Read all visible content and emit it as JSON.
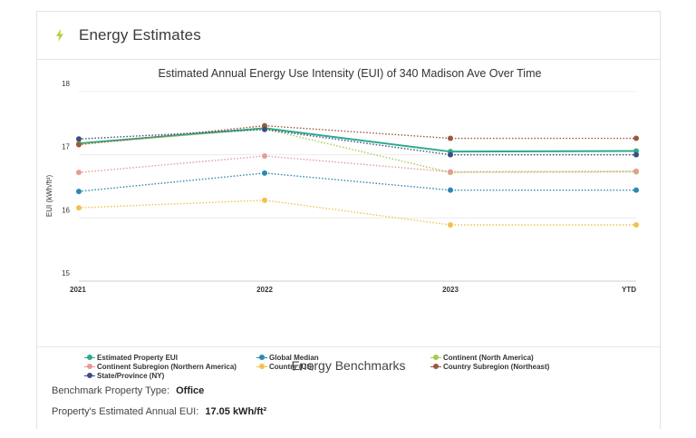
{
  "header": {
    "title": "Energy Estimates",
    "icon": "lightning-bolt-icon",
    "icon_color": "#b6cc3e"
  },
  "chart_data": {
    "type": "line",
    "title": "Estimated Annual Energy Use Intensity (EUI) of 340 Madison Ave Over Time",
    "xlabel": "",
    "ylabel": "EUI (kWh/ft²)",
    "categories": [
      "2021",
      "2022",
      "2023",
      "YTD"
    ],
    "ylim": [
      15,
      18
    ],
    "yticks": [
      "15",
      "16",
      "17",
      "18"
    ],
    "grid": true,
    "legend_position": "bottom",
    "series": [
      {
        "name": "Estimated Property EUI",
        "color": "#2eaa8a",
        "dash": "solid",
        "values": [
          17.18,
          17.42,
          17.05,
          17.06
        ]
      },
      {
        "name": "Global Median",
        "color": "#2b88b5",
        "dash": "dotted",
        "values": [
          16.42,
          16.71,
          16.44,
          16.44
        ]
      },
      {
        "name": "Continent (North America)",
        "color": "#a6cc4a",
        "dash": "dotted",
        "values": [
          17.17,
          17.41,
          16.72,
          16.73
        ]
      },
      {
        "name": "Continent Subregion (Northern America)",
        "color": "#e89a9a",
        "dash": "dotted",
        "values": [
          16.72,
          16.98,
          16.73,
          16.74
        ]
      },
      {
        "name": "Country (US)",
        "color": "#f2c14e",
        "dash": "dotted",
        "values": [
          16.16,
          16.28,
          15.89,
          15.89
        ]
      },
      {
        "name": "Country Subregion (Northeast)",
        "color": "#9a5a3a",
        "dash": "dotted",
        "values": [
          17.16,
          17.46,
          17.26,
          17.26
        ]
      },
      {
        "name": "State/Province (NY)",
        "color": "#3e4c86",
        "dash": "dotted",
        "values": [
          17.25,
          17.4,
          17.0,
          17.0
        ]
      }
    ]
  },
  "benchmarks": {
    "title": "Energy Benchmarks",
    "property_type_label": "Benchmark Property Type:",
    "property_type_value": "Office",
    "estimated_eui_label": "Property's Estimated Annual EUI:",
    "estimated_eui_value": "17.05 kWh/ft²"
  }
}
